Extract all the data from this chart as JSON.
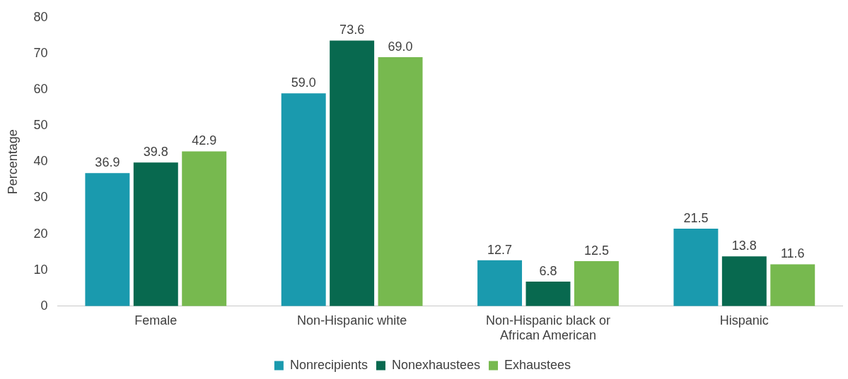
{
  "chart_data": {
    "type": "bar",
    "ylabel": "Percentage",
    "categories": [
      "Female",
      "Non-Hispanic white",
      "Non-Hispanic black or African American",
      "Hispanic"
    ],
    "series": [
      {
        "name": "Nonrecipients",
        "color": "#1a9aae",
        "values": [
          36.9,
          59.0,
          12.7,
          21.5
        ],
        "value_labels": [
          "36.9",
          "59.0",
          "12.7",
          "21.5"
        ]
      },
      {
        "name": "Nonexhaustees",
        "color": "#08694f",
        "values": [
          39.8,
          73.6,
          6.8,
          13.8
        ],
        "value_labels": [
          "39.8",
          "73.6",
          "6.8",
          "13.8"
        ]
      },
      {
        "name": "Exhaustees",
        "color": "#77b94f",
        "values": [
          42.9,
          69.0,
          12.5,
          11.6
        ],
        "value_labels": [
          "42.9",
          "69.0",
          "12.5",
          "11.6"
        ]
      }
    ],
    "ylim": [
      0,
      80
    ],
    "yticks": [
      0,
      10,
      20,
      30,
      40,
      50,
      60,
      70,
      80
    ],
    "grid": false,
    "legend": "bottom"
  }
}
